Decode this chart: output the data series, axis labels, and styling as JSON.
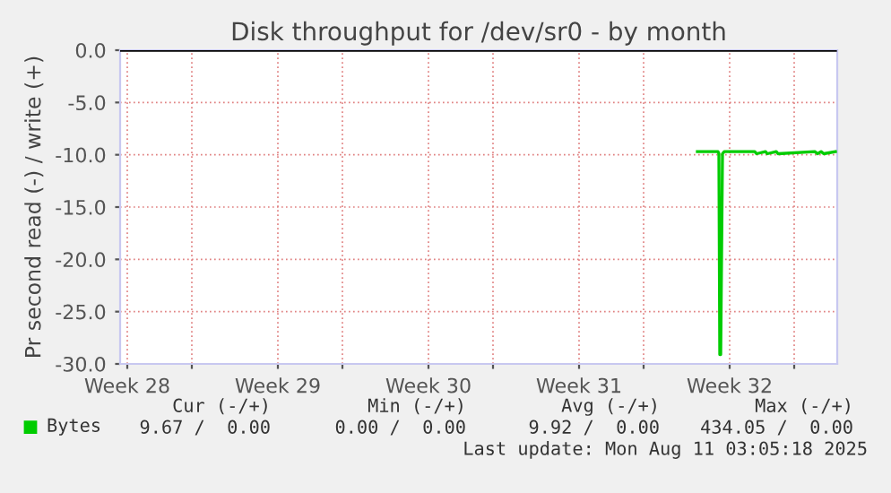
{
  "chart_data": {
    "type": "line",
    "title": "Disk throughput for /dev/sr0 - by month",
    "ylabel": "Pr second read (-) / write (+)",
    "series": [
      {
        "color": "#000000",
        "x": [
          "2025-07-06T16:00",
          "2025-08-08T22:00"
        ],
        "values": [
          0,
          0
        ]
      },
      {
        "name": "Bytes",
        "color": "#00cc00",
        "x": [
          "2025-08-02T12:00",
          "2025-08-03T04:00",
          "2025-08-03T11:00",
          "2025-08-03T12:00",
          "2025-08-03T13:00",
          "2025-08-03T14:00",
          "2025-08-03T16:00",
          "2025-08-03T18:00",
          "2025-08-05T04:00",
          "2025-08-05T06:00",
          "2025-08-05T16:00",
          "2025-08-05T18:00",
          "2025-08-06T04:00",
          "2025-08-06T06:00",
          "2025-08-07T23:00",
          "2025-08-08T02:00",
          "2025-08-08T06:00",
          "2025-08-08T09:00",
          "2025-08-08T22:00"
        ],
        "values": [
          -9.7,
          -9.7,
          -9.7,
          -9.9,
          -29.1,
          -29.1,
          -9.9,
          -9.7,
          -9.7,
          -9.9,
          -9.7,
          -9.9,
          -9.7,
          -9.9,
          -9.7,
          -9.9,
          -9.7,
          -9.9,
          -9.7
        ]
      }
    ],
    "xlim": [
      "2025-07-06T16:00",
      "2025-08-09T00:00"
    ],
    "xticks": [
      {
        "value": "2025-07-07",
        "label": "Week 28"
      },
      {
        "value": "2025-07-10",
        "label": null
      },
      {
        "value": "2025-07-14",
        "label": "Week 29"
      },
      {
        "value": "2025-07-17",
        "label": null
      },
      {
        "value": "2025-07-21",
        "label": "Week 30"
      },
      {
        "value": "2025-07-24",
        "label": null
      },
      {
        "value": "2025-07-28",
        "label": "Week 31"
      },
      {
        "value": "2025-07-31",
        "label": null
      },
      {
        "value": "2025-08-04",
        "label": "Week 32"
      },
      {
        "value": "2025-08-07",
        "label": null
      }
    ],
    "ylim": [
      -30,
      0
    ],
    "yticks": [
      {
        "value": 0,
        "label": "0.0"
      },
      {
        "value": -5,
        "label": "-5.0"
      },
      {
        "value": -10,
        "label": "-10.0"
      },
      {
        "value": -15,
        "label": "-15.0"
      },
      {
        "value": -20,
        "label": "-20.0"
      },
      {
        "value": -25,
        "label": "-25.0"
      },
      {
        "value": -30,
        "label": "-30.0"
      }
    ],
    "grid": true,
    "legend": "bottom left",
    "annotations": [
      "Cur (-/+)",
      "Min (-/+)",
      "Avg (-/+)",
      "Max (-/+)",
      "9.67 /  0.00",
      "0.00 /  0.00",
      "9.92 /  0.00",
      "434.05 /  0.00",
      "Last update: Mon Aug 11 03:05:18 2025"
    ]
  }
}
